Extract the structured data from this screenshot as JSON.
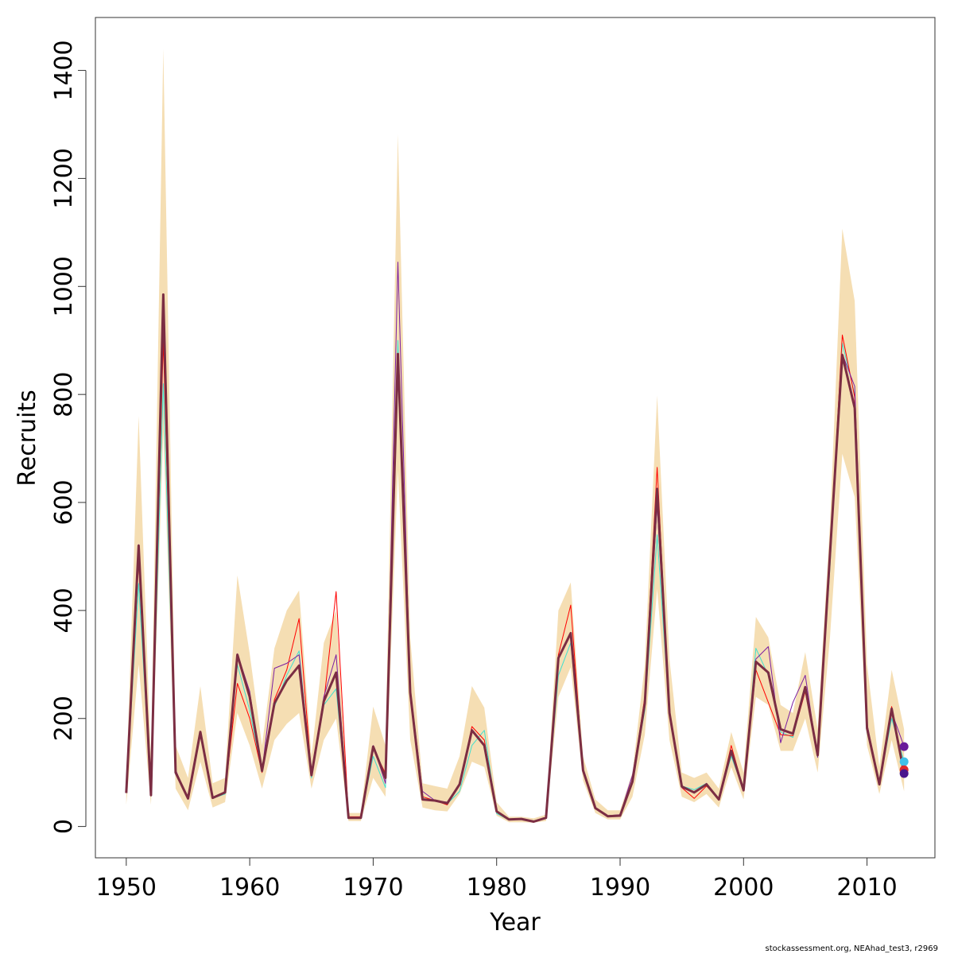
{
  "chart_data": {
    "type": "line",
    "xlabel": "Year",
    "ylabel": "Recruits",
    "xlim": [
      1947.5,
      2015.5
    ],
    "ylim": [
      -58,
      1498
    ],
    "x_ticks": [
      1950,
      1960,
      1970,
      1980,
      1990,
      2000,
      2010
    ],
    "y_ticks": [
      0,
      200,
      400,
      600,
      800,
      1000,
      1200,
      1400
    ],
    "years": [
      1950,
      1951,
      1952,
      1953,
      1954,
      1955,
      1956,
      1957,
      1958,
      1959,
      1960,
      1961,
      1962,
      1963,
      1964,
      1965,
      1966,
      1967,
      1968,
      1969,
      1970,
      1971,
      1972,
      1973,
      1974,
      1975,
      1976,
      1977,
      1978,
      1979,
      1980,
      1981,
      1982,
      1983,
      1984,
      1985,
      1986,
      1987,
      1988,
      1989,
      1990,
      1991,
      1992,
      1993,
      1994,
      1995,
      1996,
      1997,
      1998,
      1999,
      2000,
      2001,
      2002,
      2003,
      2004,
      2005,
      2006,
      2007,
      2008,
      2009,
      2010,
      2011,
      2012,
      2013
    ],
    "band": {
      "color": "#f5deb3",
      "upper": [
        80,
        760,
        120,
        1440,
        150,
        90,
        260,
        80,
        90,
        465,
        320,
        150,
        330,
        400,
        437,
        130,
        340,
        400,
        25,
        25,
        222,
        150,
        1282,
        350,
        80,
        75,
        70,
        130,
        260,
        220,
        45,
        18,
        18,
        15,
        22,
        400,
        452,
        130,
        50,
        30,
        30,
        100,
        300,
        798,
        310,
        100,
        90,
        100,
        70,
        175,
        100,
        388,
        350,
        225,
        210,
        323,
        180,
        560,
        1107,
        973,
        300,
        110,
        290,
        180
      ],
      "lower": [
        40,
        300,
        40,
        730,
        70,
        30,
        120,
        35,
        45,
        210,
        150,
        70,
        160,
        190,
        210,
        70,
        160,
        200,
        10,
        10,
        90,
        55,
        660,
        160,
        35,
        30,
        28,
        60,
        120,
        110,
        20,
        8,
        8,
        7,
        10,
        240,
        295,
        85,
        25,
        13,
        13,
        55,
        170,
        440,
        160,
        55,
        45,
        60,
        35,
        110,
        50,
        240,
        225,
        140,
        140,
        200,
        100,
        350,
        690,
        610,
        150,
        60,
        160,
        65
      ]
    },
    "series": [
      {
        "color": "#40e0d0",
        "width": 1,
        "values": [
          62,
          450,
          60,
          820,
          100,
          55,
          170,
          52,
          60,
          300,
          215,
          100,
          222,
          280,
          325,
          90,
          225,
          255,
          17,
          17,
          130,
          72,
          900,
          240,
          52,
          48,
          42,
          65,
          150,
          178,
          24,
          12,
          13,
          9,
          15,
          280,
          340,
          105,
          34,
          20,
          21,
          85,
          215,
          540,
          205,
          75,
          68,
          80,
          52,
          130,
          68,
          330,
          280,
          175,
          165,
          255,
          128,
          480,
          895,
          800,
          175,
          78,
          200,
          120
        ],
        "point": 120,
        "point_color": "#3fc1e8"
      },
      {
        "color": "#ff0000",
        "width": 1,
        "values": [
          62,
          490,
          62,
          900,
          102,
          52,
          172,
          52,
          62,
          265,
          200,
          100,
          235,
          290,
          385,
          95,
          230,
          435,
          18,
          18,
          145,
          98,
          870,
          245,
          55,
          48,
          40,
          78,
          185,
          160,
          28,
          13,
          14,
          9,
          17,
          318,
          410,
          102,
          33,
          19,
          20,
          85,
          240,
          665,
          210,
          72,
          52,
          75,
          50,
          150,
          68,
          290,
          230,
          170,
          168,
          250,
          132,
          500,
          910,
          795,
          178,
          78,
          222,
          105
        ],
        "point": 105,
        "point_color": "#dd2a2a"
      },
      {
        "color": "#7b1fa2",
        "width": 1,
        "values": [
          62,
          522,
          60,
          985,
          105,
          50,
          175,
          52,
          65,
          320,
          250,
          102,
          293,
          302,
          318,
          96,
          240,
          318,
          17,
          17,
          150,
          80,
          1045,
          255,
          65,
          48,
          45,
          80,
          180,
          152,
          28,
          13,
          14,
          9,
          16,
          310,
          355,
          102,
          35,
          20,
          22,
          95,
          230,
          595,
          205,
          72,
          62,
          80,
          50,
          140,
          66,
          310,
          333,
          155,
          230,
          280,
          128,
          515,
          875,
          815,
          190,
          80,
          212,
          148
        ],
        "point": 148,
        "point_color": "#6a1b9a"
      },
      {
        "color": "#7b2d43",
        "width": 3,
        "values": [
          62,
          520,
          58,
          985,
          100,
          52,
          175,
          53,
          63,
          318,
          240,
          103,
          228,
          270,
          298,
          95,
          232,
          285,
          16,
          16,
          148,
          90,
          875,
          248,
          50,
          48,
          43,
          78,
          178,
          150,
          28,
          13,
          14,
          9,
          16,
          312,
          358,
          104,
          34,
          19,
          20,
          83,
          228,
          625,
          210,
          74,
          63,
          78,
          50,
          140,
          67,
          305,
          285,
          180,
          172,
          258,
          132,
          505,
          873,
          775,
          182,
          78,
          218,
          98
        ],
        "point": 98,
        "point_color": "#4a148c"
      }
    ]
  },
  "footer_text": "stockassessment.org, NEAhad_test3, r2969"
}
